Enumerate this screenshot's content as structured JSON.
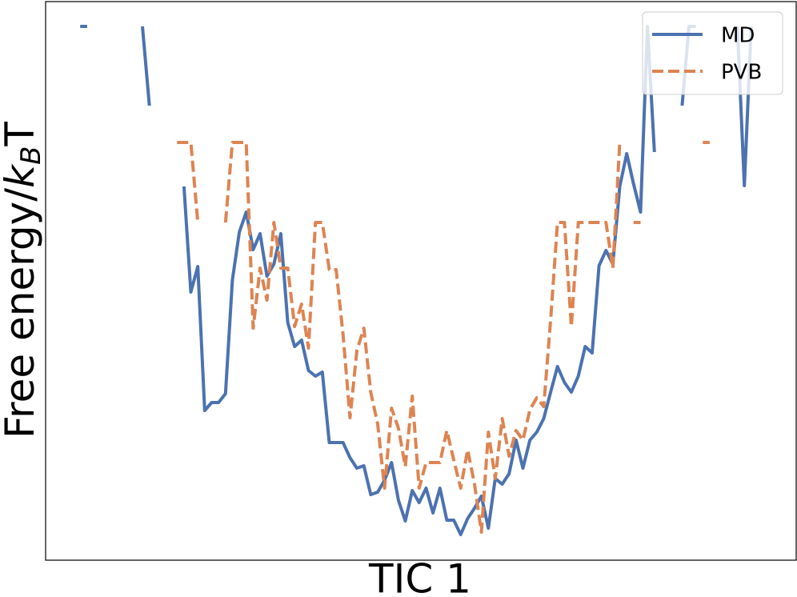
{
  "chart_data": {
    "type": "line",
    "xlabel": "TIC 1",
    "ylabel": [
      "Free energy/",
      "k",
      "B",
      "T"
    ],
    "x": [
      0,
      1,
      2,
      3,
      4,
      5,
      6,
      7,
      8,
      9,
      10,
      11,
      12,
      13,
      14,
      15,
      16,
      17,
      18,
      19,
      20,
      21,
      22,
      23,
      24,
      25,
      26,
      27,
      28,
      29,
      30,
      31,
      32,
      33,
      34,
      35,
      36,
      37,
      38,
      39,
      40,
      41,
      42,
      43,
      44,
      45,
      46,
      47,
      48,
      49,
      50,
      51,
      52,
      53,
      54,
      55,
      56,
      57,
      58,
      59,
      60,
      61,
      62,
      63,
      64,
      65,
      66,
      67,
      68,
      69,
      70,
      71,
      72,
      73,
      74,
      75,
      76,
      77,
      78,
      79,
      80,
      81,
      82,
      83,
      84,
      85,
      86,
      87,
      88,
      89,
      90,
      91,
      92,
      93,
      94,
      95,
      96,
      97
    ],
    "xlim": [
      -5,
      103.5
    ],
    "ylim": [
      0,
      69.8
    ],
    "legend": "upper right",
    "series": [
      {
        "name": "MD",
        "color": "#4c72b0",
        "dashed": false,
        "values": [
          66.7,
          66.7,
          null,
          null,
          null,
          null,
          null,
          null,
          null,
          66.7,
          56.8,
          null,
          null,
          null,
          null,
          46.7,
          33.5,
          36.7,
          18.7,
          19.7,
          19.7,
          20.8,
          35.0,
          41.0,
          43.5,
          38.8,
          40.8,
          35.5,
          37.0,
          40.8,
          29.7,
          26.7,
          27.5,
          23.7,
          23.0,
          23.5,
          14.7,
          14.7,
          14.7,
          12.8,
          11.5,
          11.8,
          8.2,
          8.5,
          10.0,
          12.2,
          7.5,
          4.9,
          8.7,
          7.2,
          9.0,
          5.9,
          9.0,
          5.0,
          5.0,
          3.2,
          5.2,
          6.5,
          8.0,
          4.0,
          10.2,
          9.5,
          10.8,
          15.0,
          11.5,
          15.0,
          16.0,
          17.7,
          21.0,
          24.2,
          22.2,
          21.0,
          23.0,
          26.7,
          25.9,
          36.8,
          38.7,
          37.0,
          46.7,
          50.8,
          47.0,
          43.5,
          66.7,
          51.0,
          null,
          null,
          null,
          56.8,
          66.7,
          66.7,
          null,
          null,
          null,
          null,
          null,
          66.7,
          46.8,
          66.7
        ]
      },
      {
        "name": "PVB",
        "color": "#dd8452",
        "dashed": true,
        "values": [
          null,
          null,
          null,
          null,
          null,
          null,
          null,
          null,
          null,
          null,
          null,
          null,
          null,
          null,
          52.2,
          52.2,
          52.2,
          42.2,
          null,
          null,
          null,
          42.2,
          52.2,
          52.2,
          52.2,
          29.0,
          36.5,
          32.5,
          42.2,
          36.5,
          36.5,
          29.2,
          32.0,
          26.5,
          42.2,
          42.2,
          36.3,
          36.3,
          28.2,
          17.8,
          26.2,
          29.0,
          21.0,
          17.0,
          9.0,
          19.0,
          16.5,
          11.7,
          20.5,
          9.0,
          12.2,
          12.2,
          12.2,
          16.2,
          12.5,
          9.0,
          13.8,
          9.5,
          3.5,
          16.0,
          10.2,
          17.7,
          13.0,
          16.2,
          15.0,
          18.8,
          20.3,
          19.2,
          30.0,
          42.2,
          42.2,
          29.2,
          42.2,
          42.2,
          42.2,
          42.2,
          42.2,
          36.5,
          52.2,
          null,
          42.2,
          42.2,
          null,
          null,
          null,
          null,
          null,
          null,
          null,
          null,
          52.2,
          52.2,
          null,
          null,
          null,
          null,
          null,
          null
        ]
      }
    ]
  }
}
